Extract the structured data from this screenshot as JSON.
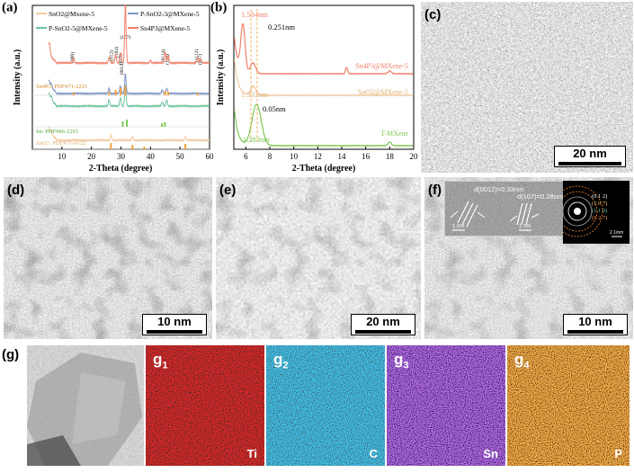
{
  "panel_a": {
    "label": "(a)",
    "legend": [
      "SnO2@Mxene-5",
      "P-SnO2-3@MXene-5",
      "P-SnO2-5@MXene-5",
      "Sn4P3@MXene-5"
    ],
    "peak_labels": [
      "(006)",
      "(012)",
      "(104)",
      "(015)",
      "(107)",
      "(0012)",
      "(0114)",
      "(116)",
      "(1112)",
      "(027)"
    ],
    "refs": [
      "Sn4P3: PDF#71-2221",
      "Sn: PDF#86-2265",
      "SnO2: PDF#71-0652"
    ],
    "colors": {
      "snp": "#f0806a",
      "sno2": "#f2c9a0",
      "p3": "#7f95c8",
      "p5": "#6cc49c",
      "ref_orange": "#f2a33a",
      "ref_green": "#7dc855"
    }
  },
  "panel_b": {
    "label": "(b)",
    "annotations": [
      "1.534nm",
      "0.251nm",
      "1.333nm",
      "0.05nm",
      "1.283nm"
    ],
    "curve_labels": [
      "Sn4P3@MXene-5",
      "SnO2@MXene-5",
      "T-MXene"
    ],
    "colors": {
      "snp": "#f0806a",
      "sno2": "#f2c9a0",
      "mx": "#7dc855"
    }
  },
  "chart_data": [
    {
      "type": "line",
      "title": "",
      "xlabel": "2-Theta (degree)",
      "ylabel": "Intensity (a.u.)",
      "xlim": [
        0,
        60
      ],
      "x_ticks": [
        10,
        20,
        30,
        40,
        50,
        60
      ],
      "series": [
        {
          "name": "Sn4P3@MXene-5",
          "x": [
            5.5,
            14,
            26,
            28,
            29.8,
            31.5,
            40,
            45,
            46,
            56,
            57
          ],
          "y": [
            0.95,
            0.83,
            0.84,
            0.85,
            0.86,
            1.0,
            0.83,
            0.86,
            0.85,
            0.83,
            0.84
          ]
        },
        {
          "name": "P-SnO2-3@MXene-5",
          "x": [
            5.5,
            20,
            26,
            30.5,
            31.5,
            44,
            45.5,
            60
          ],
          "y": [
            0.5,
            0.49,
            0.52,
            0.56,
            0.58,
            0.52,
            0.51,
            0.5
          ]
        },
        {
          "name": "P-SnO2-5@MXene-5",
          "x": [
            5.5,
            20,
            26,
            30.5,
            31.5,
            44,
            45.5,
            60
          ],
          "y": [
            0.42,
            0.4,
            0.43,
            0.47,
            0.49,
            0.43,
            0.42,
            0.41
          ]
        },
        {
          "name": "SnO2@Mxene-5",
          "x": [
            5.5,
            26.6,
            33.9,
            37.9,
            51.8,
            60
          ],
          "y": [
            0.22,
            0.24,
            0.23,
            0.22,
            0.23,
            0.22
          ]
        }
      ]
    },
    {
      "type": "line",
      "title": "",
      "xlabel": "2-Theta (degree)",
      "ylabel": "Intensity (a.u.)",
      "xlim": [
        5,
        20
      ],
      "x_ticks": [
        6,
        8,
        10,
        12,
        14,
        16,
        18,
        20
      ],
      "series": [
        {
          "name": "Sn4P3@MXene-5",
          "peaks_x": [
            5.76,
            6.6,
            14.4,
            18
          ]
        },
        {
          "name": "SnO2@MXene-5",
          "peaks_x": [
            6.63
          ]
        },
        {
          "name": "T-MXene",
          "peaks_x": [
            6.9,
            18
          ]
        }
      ]
    }
  ],
  "panel_c": {
    "label": "(c)",
    "scale": "20 nm"
  },
  "panel_d": {
    "label": "(d)",
    "scale": "10 nm"
  },
  "panel_e": {
    "label": "(e)",
    "scale": "20 nm"
  },
  "panel_f": {
    "label": "(f)",
    "scale": "10 nm",
    "d_spacings": [
      "d(0012)=0.33nm",
      "d(107)=0.28nm"
    ],
    "inset_scales": [
      "1 nm",
      "1 nm",
      "2 1/nm"
    ],
    "saed_rings": [
      "(0 1 2)",
      "(1 0 7)",
      "(1 1 0)",
      "(0 2 7)"
    ]
  },
  "panel_g": {
    "label": "(g)",
    "maps": [
      {
        "tag": "g",
        "sub": "1",
        "element": "Ti",
        "color": "#e03030"
      },
      {
        "tag": "g",
        "sub": "2",
        "element": "C",
        "color": "#3a8ee8"
      },
      {
        "tag": "g",
        "sub": "3",
        "element": "Sn",
        "color": "#8c3ad8"
      },
      {
        "tag": "g",
        "sub": "4",
        "element": "P",
        "color": "#e88a2a"
      }
    ]
  }
}
